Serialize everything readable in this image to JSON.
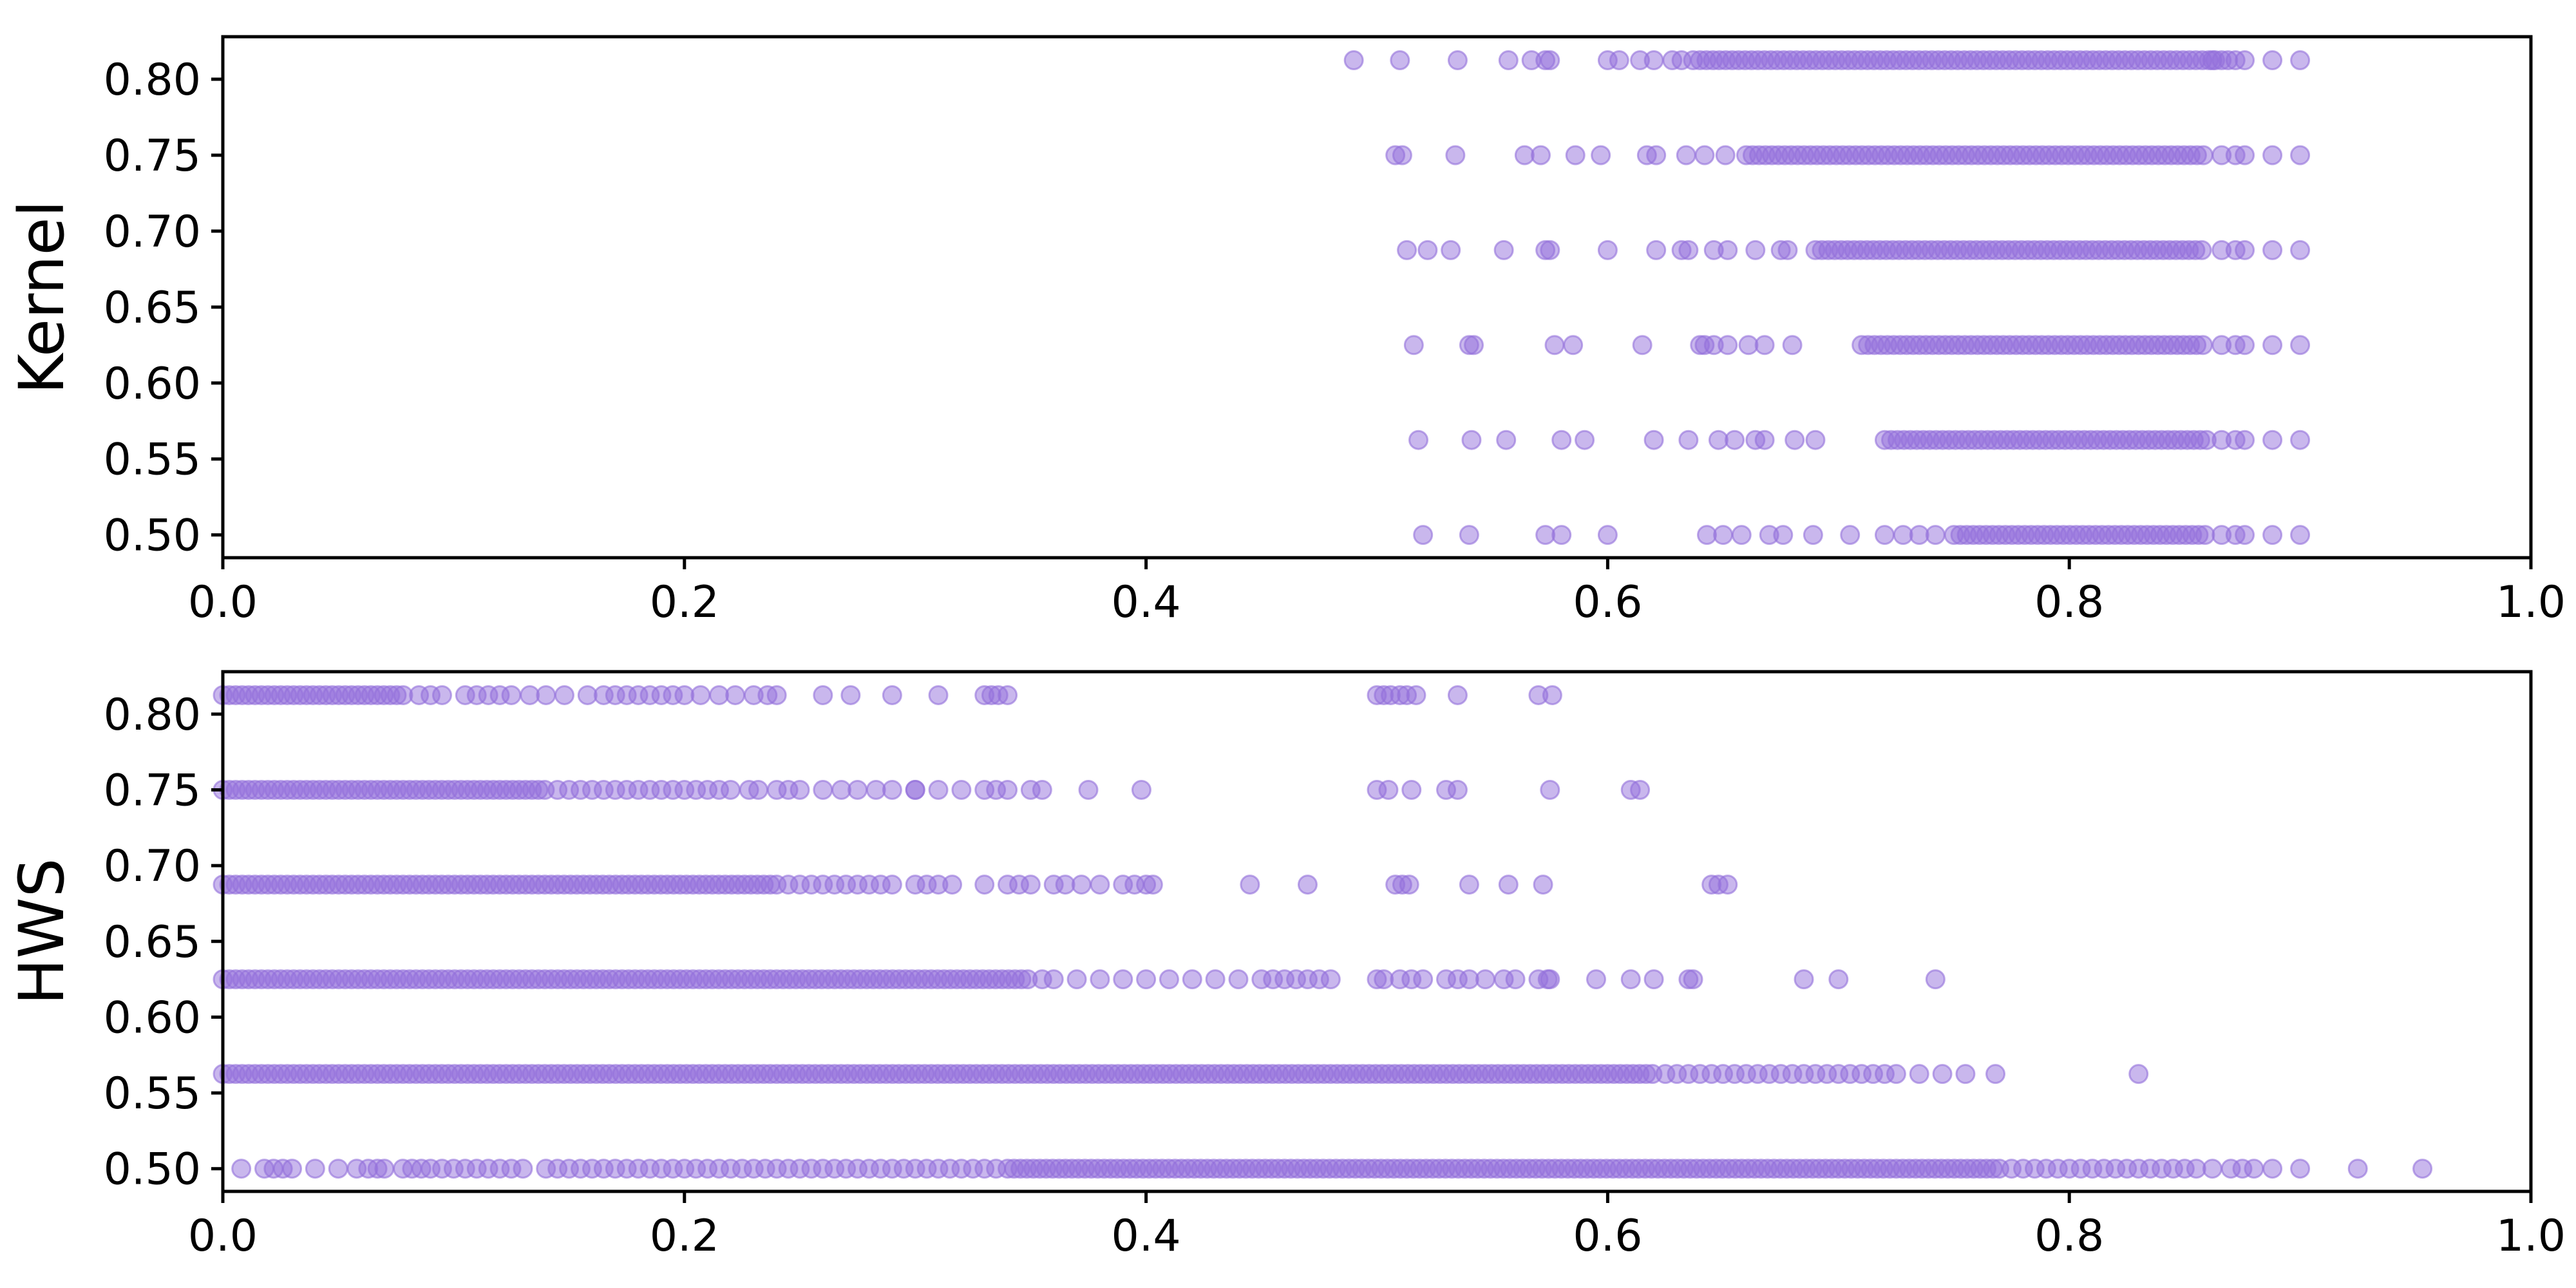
{
  "chart_data": [
    {
      "type": "scatter",
      "ylabel": "Kernel",
      "xlim": [
        0.0,
        1.0
      ],
      "ylim": [
        0.485,
        0.828
      ],
      "xticks": [
        "0.0",
        "0.2",
        "0.4",
        "0.6",
        "0.8",
        "1.0"
      ],
      "yticks": [
        "0.50",
        "0.55",
        "0.60",
        "0.65",
        "0.70",
        "0.75",
        "0.80"
      ],
      "marker_color": "#9370DB",
      "marker_alpha": 0.5,
      "grid": false,
      "rows": [
        {
          "y": 0.8125,
          "dense": [
            0.64,
            0.87
          ],
          "x": [
            0.49,
            0.51,
            0.535,
            0.557,
            0.567,
            0.573,
            0.575,
            0.6,
            0.605,
            0.614,
            0.62,
            0.628,
            0.632,
            0.637,
            0.862,
            0.872,
            0.876,
            0.888,
            0.9
          ]
        },
        {
          "y": 0.75,
          "dense": [
            0.66,
            0.86
          ],
          "x": [
            0.508,
            0.511,
            0.534,
            0.564,
            0.571,
            0.586,
            0.597,
            0.617,
            0.621,
            0.634,
            0.642,
            0.651,
            0.866,
            0.872,
            0.876,
            0.888,
            0.9
          ]
        },
        {
          "y": 0.6875,
          "dense": [
            0.69,
            0.86
          ],
          "x": [
            0.513,
            0.522,
            0.532,
            0.555,
            0.573,
            0.575,
            0.6,
            0.621,
            0.632,
            0.635,
            0.646,
            0.652,
            0.664,
            0.675,
            0.678,
            0.866,
            0.872,
            0.876,
            0.888,
            0.9
          ]
        },
        {
          "y": 0.625,
          "dense": [
            0.71,
            0.86
          ],
          "x": [
            0.516,
            0.54,
            0.542,
            0.577,
            0.585,
            0.615,
            0.64,
            0.642,
            0.646,
            0.652,
            0.661,
            0.668,
            0.68,
            0.866,
            0.872,
            0.876,
            0.888,
            0.9
          ]
        },
        {
          "y": 0.5625,
          "dense": [
            0.72,
            0.86
          ],
          "x": [
            0.518,
            0.541,
            0.556,
            0.58,
            0.59,
            0.62,
            0.635,
            0.648,
            0.655,
            0.664,
            0.668,
            0.681,
            0.69,
            0.866,
            0.872,
            0.876,
            0.888,
            0.9
          ]
        },
        {
          "y": 0.5,
          "dense": [
            0.75,
            0.86
          ],
          "x": [
            0.52,
            0.54,
            0.573,
            0.58,
            0.6,
            0.643,
            0.65,
            0.658,
            0.67,
            0.676,
            0.689,
            0.705,
            0.72,
            0.728,
            0.735,
            0.742,
            0.866,
            0.872,
            0.876,
            0.888,
            0.9
          ]
        }
      ]
    },
    {
      "type": "scatter",
      "ylabel": "HWS",
      "xlim": [
        0.0,
        1.0
      ],
      "ylim": [
        0.485,
        0.828
      ],
      "xticks": [
        "0.0",
        "0.2",
        "0.4",
        "0.6",
        "0.8",
        "1.0"
      ],
      "yticks": [
        "0.50",
        "0.55",
        "0.60",
        "0.65",
        "0.70",
        "0.75",
        "0.80"
      ],
      "marker_color": "#9370DB",
      "marker_alpha": 0.5,
      "grid": false,
      "rows": [
        {
          "y": 0.8125,
          "dense": [
            0.0,
            0.08
          ],
          "x": [
            0.085,
            0.09,
            0.095,
            0.105,
            0.11,
            0.115,
            0.12,
            0.125,
            0.133,
            0.14,
            0.148,
            0.158,
            0.165,
            0.17,
            0.175,
            0.18,
            0.185,
            0.19,
            0.195,
            0.2,
            0.207,
            0.215,
            0.222,
            0.23,
            0.236,
            0.24,
            0.26,
            0.272,
            0.29,
            0.31,
            0.33,
            0.333,
            0.336,
            0.34,
            0.5,
            0.503,
            0.506,
            0.51,
            0.513,
            0.517,
            0.535,
            0.57,
            0.576
          ]
        },
        {
          "y": 0.75,
          "dense": [
            0.0,
            0.14
          ],
          "x": [
            0.145,
            0.15,
            0.155,
            0.16,
            0.165,
            0.17,
            0.175,
            0.18,
            0.185,
            0.19,
            0.195,
            0.2,
            0.205,
            0.21,
            0.215,
            0.22,
            0.228,
            0.232,
            0.24,
            0.245,
            0.25,
            0.26,
            0.268,
            0.275,
            0.283,
            0.29,
            0.3,
            0.31,
            0.3,
            0.32,
            0.33,
            0.335,
            0.34,
            0.35,
            0.355,
            0.375,
            0.398,
            0.5,
            0.505,
            0.515,
            0.53,
            0.535,
            0.575,
            0.61,
            0.614
          ]
        },
        {
          "y": 0.6875,
          "dense": [
            0.0,
            0.24
          ],
          "x": [
            0.245,
            0.25,
            0.255,
            0.26,
            0.265,
            0.27,
            0.275,
            0.28,
            0.285,
            0.29,
            0.3,
            0.305,
            0.31,
            0.316,
            0.33,
            0.34,
            0.345,
            0.35,
            0.36,
            0.365,
            0.372,
            0.38,
            0.39,
            0.395,
            0.4,
            0.403,
            0.445,
            0.47,
            0.508,
            0.511,
            0.514,
            0.54,
            0.557,
            0.572,
            0.645,
            0.648,
            0.652
          ]
        },
        {
          "y": 0.625,
          "dense": [
            0.0,
            0.35
          ],
          "x": [
            0.355,
            0.36,
            0.37,
            0.38,
            0.39,
            0.4,
            0.41,
            0.42,
            0.43,
            0.44,
            0.45,
            0.455,
            0.46,
            0.465,
            0.47,
            0.475,
            0.48,
            0.5,
            0.503,
            0.51,
            0.515,
            0.52,
            0.53,
            0.535,
            0.54,
            0.547,
            0.555,
            0.56,
            0.57,
            0.574,
            0.575,
            0.595,
            0.61,
            0.62,
            0.635,
            0.637,
            0.685,
            0.7,
            0.742
          ]
        },
        {
          "y": 0.5625,
          "dense": [
            0.0,
            0.62
          ],
          "x": [
            0.625,
            0.63,
            0.635,
            0.64,
            0.645,
            0.65,
            0.655,
            0.66,
            0.665,
            0.67,
            0.675,
            0.68,
            0.685,
            0.69,
            0.695,
            0.7,
            0.705,
            0.71,
            0.715,
            0.72,
            0.725,
            0.735,
            0.745,
            0.755,
            0.768,
            0.83
          ]
        },
        {
          "y": 0.5,
          "dense": [
            0.34,
            0.77
          ],
          "x": [
            0.008,
            0.018,
            0.022,
            0.026,
            0.03,
            0.04,
            0.05,
            0.058,
            0.063,
            0.067,
            0.07,
            0.078,
            0.082,
            0.086,
            0.09,
            0.095,
            0.1,
            0.105,
            0.11,
            0.115,
            0.12,
            0.125,
            0.13,
            0.14,
            0.145,
            0.15,
            0.155,
            0.16,
            0.165,
            0.17,
            0.175,
            0.18,
            0.185,
            0.19,
            0.195,
            0.2,
            0.205,
            0.21,
            0.215,
            0.22,
            0.225,
            0.23,
            0.235,
            0.24,
            0.245,
            0.25,
            0.255,
            0.26,
            0.265,
            0.27,
            0.275,
            0.28,
            0.285,
            0.29,
            0.295,
            0.3,
            0.305,
            0.31,
            0.315,
            0.32,
            0.325,
            0.33,
            0.335,
            0.775,
            0.78,
            0.785,
            0.79,
            0.795,
            0.8,
            0.805,
            0.81,
            0.815,
            0.82,
            0.825,
            0.83,
            0.835,
            0.84,
            0.845,
            0.85,
            0.855,
            0.862,
            0.87,
            0.875,
            0.88,
            0.888,
            0.9,
            0.925,
            0.953
          ]
        }
      ]
    }
  ]
}
